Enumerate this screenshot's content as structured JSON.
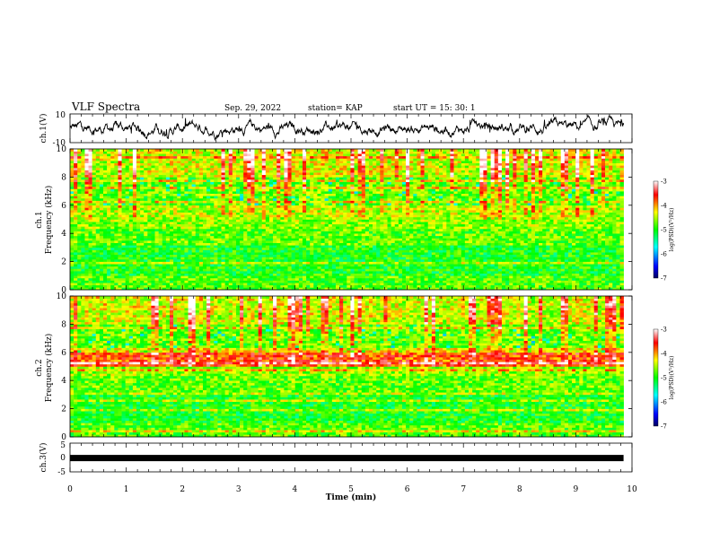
{
  "header": {
    "title": "VLF Spectra",
    "date": "Sep. 29, 2022",
    "station": "station= KAP",
    "start": "start  UT  =   15: 30: 1"
  },
  "colors": {
    "trace": "#000000",
    "colormap": [
      "#000060",
      "#0000ff",
      "#00ffff",
      "#00ff00",
      "#ffff00",
      "#ff0000",
      "#ffffff"
    ]
  },
  "chart_data": [
    {
      "type": "line",
      "name": "ch1-waveform",
      "ylabel": "ch.1(V)",
      "ylim": [
        -10,
        10
      ],
      "yticks": [
        "10",
        "-10"
      ],
      "xlim": [
        0,
        10
      ],
      "grid": false
    },
    {
      "type": "heatmap",
      "name": "ch1-spectrogram",
      "ylabel": "ch.1 Frequency (kHz)",
      "ylabel_top": "ch.1",
      "ylabel_bottom": "Frequency (kHz)",
      "ylim": [
        0,
        10
      ],
      "yticks": [
        "0",
        "2",
        "4",
        "6",
        "8",
        "10"
      ],
      "xlim": [
        0,
        9.85
      ],
      "colorbar": {
        "label": "log(PSD)(V²/Hz)",
        "range": [
          -7,
          -3
        ],
        "ticks": [
          "-3",
          "-4",
          "-5",
          "-6",
          "-7"
        ]
      }
    },
    {
      "type": "heatmap",
      "name": "ch2-spectrogram",
      "ylabel": "ch.2 Frequency (kHz)",
      "ylabel_top": "ch.2",
      "ylabel_bottom": "Frequency (kHz)",
      "ylim": [
        0,
        10
      ],
      "yticks": [
        "0",
        "2",
        "4",
        "6",
        "8",
        "10"
      ],
      "xlim": [
        0,
        9.85
      ],
      "colorbar": {
        "label": "log(PSD)(V²/Hz)",
        "range": [
          -7,
          -3
        ],
        "ticks": [
          "-3",
          "-4",
          "-5",
          "-6",
          "-7"
        ]
      }
    },
    {
      "type": "line",
      "name": "ch3-waveform",
      "ylabel": "ch.3(V)",
      "ylim": [
        -5,
        5
      ],
      "yticks": [
        "5",
        "0",
        "-5"
      ],
      "level": -0.2,
      "xlim": [
        0,
        9.85
      ]
    }
  ],
  "xaxis": {
    "label": "Time (min)",
    "range": [
      0,
      10
    ],
    "ticks": [
      "0",
      "1",
      "2",
      "3",
      "4",
      "5",
      "6",
      "7",
      "8",
      "9",
      "10"
    ]
  }
}
